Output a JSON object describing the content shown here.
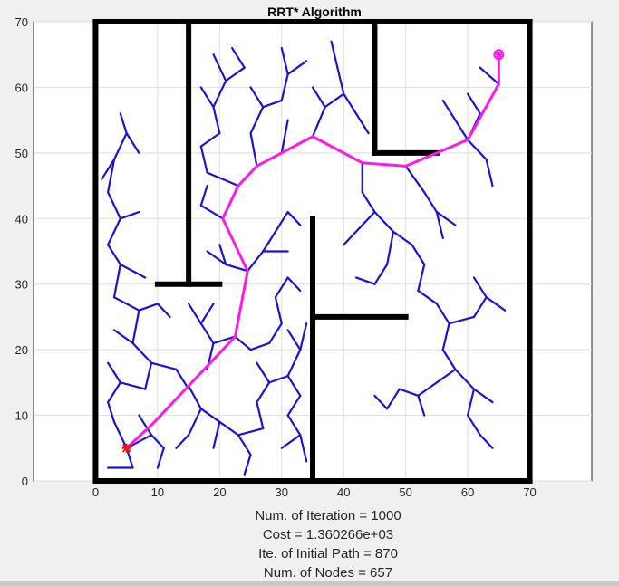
{
  "chart_data": {
    "type": "scatter",
    "title": "RRT* Algorithm",
    "xlim": [
      -10,
      80
    ],
    "ylim": [
      0,
      70
    ],
    "xticks": [
      0,
      10,
      20,
      30,
      40,
      50,
      60,
      70
    ],
    "yticks": [
      0,
      10,
      20,
      30,
      40,
      50,
      60,
      70
    ],
    "grid": true,
    "colors": {
      "tree": "#1a12d4",
      "path": "#ff19e6",
      "walls": "#000000",
      "start": "#ff1010",
      "goal": "#ff19e6"
    },
    "start": [
      5,
      5
    ],
    "goal": [
      65,
      65
    ],
    "walls": [
      [
        [
          0,
          0
        ],
        [
          0,
          70
        ]
      ],
      [
        [
          0,
          70
        ],
        [
          70,
          70
        ]
      ],
      [
        [
          70,
          70
        ],
        [
          70,
          0
        ]
      ],
      [
        [
          0,
          0
        ],
        [
          70,
          0
        ]
      ],
      [
        [
          15,
          70
        ],
        [
          15,
          30
        ]
      ],
      [
        [
          10,
          30
        ],
        [
          20,
          30
        ]
      ],
      [
        [
          35,
          40
        ],
        [
          35,
          0
        ]
      ],
      [
        [
          35,
          25
        ],
        [
          50,
          25
        ]
      ],
      [
        [
          45,
          70
        ],
        [
          45,
          50
        ]
      ],
      [
        [
          45,
          50
        ],
        [
          55,
          50
        ]
      ]
    ],
    "path": [
      [
        5,
        5
      ],
      [
        9,
        8.5
      ],
      [
        15,
        14.5
      ],
      [
        22.5,
        22
      ],
      [
        24.5,
        32
      ],
      [
        20.5,
        40
      ],
      [
        23,
        45
      ],
      [
        26,
        48
      ],
      [
        30,
        50
      ],
      [
        35,
        52.5
      ],
      [
        43,
        48.5
      ],
      [
        50,
        48
      ],
      [
        60,
        52
      ],
      [
        65,
        60.5
      ],
      [
        65,
        65
      ]
    ],
    "tree_edges": [
      [
        [
          5,
          5
        ],
        [
          3,
          9
        ]
      ],
      [
        [
          5,
          5
        ],
        [
          6,
          2
        ]
      ],
      [
        [
          2,
          2
        ],
        [
          6,
          2
        ]
      ],
      [
        [
          5,
          5
        ],
        [
          9,
          7
        ]
      ],
      [
        [
          3,
          9
        ],
        [
          2,
          12
        ]
      ],
      [
        [
          2,
          12
        ],
        [
          4,
          15
        ]
      ],
      [
        [
          4,
          15
        ],
        [
          2,
          18
        ]
      ],
      [
        [
          4,
          15
        ],
        [
          8,
          14
        ]
      ],
      [
        [
          8,
          14
        ],
        [
          9,
          18
        ]
      ],
      [
        [
          9,
          18
        ],
        [
          6,
          21
        ]
      ],
      [
        [
          9,
          18
        ],
        [
          13,
          17
        ]
      ],
      [
        [
          13,
          17
        ],
        [
          15,
          14
        ]
      ],
      [
        [
          6,
          21
        ],
        [
          3,
          23
        ]
      ],
      [
        [
          6,
          21
        ],
        [
          7,
          26
        ]
      ],
      [
        [
          7,
          26
        ],
        [
          3,
          28
        ]
      ],
      [
        [
          7,
          26
        ],
        [
          10,
          27
        ]
      ],
      [
        [
          10,
          27
        ],
        [
          12,
          25
        ]
      ],
      [
        [
          3,
          28
        ],
        [
          4,
          33
        ]
      ],
      [
        [
          4,
          33
        ],
        [
          2,
          36
        ]
      ],
      [
        [
          4,
          33
        ],
        [
          8,
          31
        ]
      ],
      [
        [
          2,
          36
        ],
        [
          4,
          40
        ]
      ],
      [
        [
          4,
          40
        ],
        [
          2,
          44
        ]
      ],
      [
        [
          4,
          40
        ],
        [
          7,
          41
        ]
      ],
      [
        [
          2,
          44
        ],
        [
          3,
          49
        ]
      ],
      [
        [
          3,
          49
        ],
        [
          5,
          53
        ]
      ],
      [
        [
          5,
          53
        ],
        [
          4,
          56
        ]
      ],
      [
        [
          5,
          53
        ],
        [
          7,
          50
        ]
      ],
      [
        [
          3,
          49
        ],
        [
          1,
          46
        ]
      ],
      [
        [
          9,
          7
        ],
        [
          7,
          10
        ]
      ],
      [
        [
          9,
          7
        ],
        [
          11,
          5
        ]
      ],
      [
        [
          11,
          5
        ],
        [
          10,
          2
        ]
      ],
      [
        [
          15,
          14.5
        ],
        [
          17,
          11
        ]
      ],
      [
        [
          17,
          11
        ],
        [
          15,
          7
        ]
      ],
      [
        [
          15,
          7
        ],
        [
          13,
          5
        ]
      ],
      [
        [
          17,
          11
        ],
        [
          20,
          9
        ]
      ],
      [
        [
          20,
          9
        ],
        [
          19,
          5
        ]
      ],
      [
        [
          20,
          9
        ],
        [
          23,
          7
        ]
      ],
      [
        [
          23,
          7
        ],
        [
          25,
          4
        ]
      ],
      [
        [
          25,
          4
        ],
        [
          24,
          1
        ]
      ],
      [
        [
          23,
          7
        ],
        [
          27,
          8
        ]
      ],
      [
        [
          27,
          8
        ],
        [
          26,
          12
        ]
      ],
      [
        [
          26,
          12
        ],
        [
          28,
          15
        ]
      ],
      [
        [
          28,
          15
        ],
        [
          26,
          18
        ]
      ],
      [
        [
          28,
          15
        ],
        [
          31,
          16
        ]
      ],
      [
        [
          31,
          16
        ],
        [
          33,
          13
        ]
      ],
      [
        [
          33,
          13
        ],
        [
          31,
          10
        ]
      ],
      [
        [
          31,
          10
        ],
        [
          33,
          7
        ]
      ],
      [
        [
          33,
          7
        ],
        [
          30,
          5
        ]
      ],
      [
        [
          33,
          7
        ],
        [
          34,
          3
        ]
      ],
      [
        [
          31,
          16
        ],
        [
          33,
          20
        ]
      ],
      [
        [
          33,
          20
        ],
        [
          31,
          23
        ]
      ],
      [
        [
          33,
          20
        ],
        [
          34,
          24
        ]
      ],
      [
        [
          22.5,
          22
        ],
        [
          19,
          21
        ]
      ],
      [
        [
          19,
          21
        ],
        [
          17,
          24
        ]
      ],
      [
        [
          17,
          24
        ],
        [
          15,
          27
        ]
      ],
      [
        [
          17,
          24
        ],
        [
          19,
          27
        ]
      ],
      [
        [
          19,
          21
        ],
        [
          18,
          17
        ]
      ],
      [
        [
          22.5,
          22
        ],
        [
          25,
          20
        ]
      ],
      [
        [
          25,
          20
        ],
        [
          28,
          21
        ]
      ],
      [
        [
          28,
          21
        ],
        [
          30,
          24
        ]
      ],
      [
        [
          30,
          24
        ],
        [
          29,
          28
        ]
      ],
      [
        [
          29,
          28
        ],
        [
          31,
          31
        ]
      ],
      [
        [
          31,
          31
        ],
        [
          33,
          29
        ]
      ],
      [
        [
          24.5,
          32
        ],
        [
          21,
          33
        ]
      ],
      [
        [
          21,
          33
        ],
        [
          18,
          35
        ]
      ],
      [
        [
          21,
          33
        ],
        [
          20,
          36
        ]
      ],
      [
        [
          24.5,
          32
        ],
        [
          27,
          35
        ]
      ],
      [
        [
          27,
          35
        ],
        [
          29,
          38
        ]
      ],
      [
        [
          29,
          38
        ],
        [
          31,
          41
        ]
      ],
      [
        [
          31,
          41
        ],
        [
          33,
          39
        ]
      ],
      [
        [
          27,
          35
        ],
        [
          31,
          35
        ]
      ],
      [
        [
          20.5,
          40
        ],
        [
          17,
          42
        ]
      ],
      [
        [
          17,
          42
        ],
        [
          18,
          45
        ]
      ],
      [
        [
          23,
          45
        ],
        [
          18,
          47
        ]
      ],
      [
        [
          18,
          47
        ],
        [
          17,
          51
        ]
      ],
      [
        [
          17,
          51
        ],
        [
          20,
          53
        ]
      ],
      [
        [
          20,
          53
        ],
        [
          19,
          57
        ]
      ],
      [
        [
          19,
          57
        ],
        [
          17,
          60
        ]
      ],
      [
        [
          19,
          57
        ],
        [
          21,
          61
        ]
      ],
      [
        [
          21,
          61
        ],
        [
          19,
          65
        ]
      ],
      [
        [
          21,
          61
        ],
        [
          24,
          63
        ]
      ],
      [
        [
          24,
          63
        ],
        [
          22,
          66
        ]
      ],
      [
        [
          26,
          48
        ],
        [
          25,
          53
        ]
      ],
      [
        [
          25,
          53
        ],
        [
          27,
          57
        ]
      ],
      [
        [
          27,
          57
        ],
        [
          25,
          60
        ]
      ],
      [
        [
          27,
          57
        ],
        [
          30,
          58
        ]
      ],
      [
        [
          30,
          58
        ],
        [
          31,
          62
        ]
      ],
      [
        [
          31,
          62
        ],
        [
          30,
          66
        ]
      ],
      [
        [
          31,
          62
        ],
        [
          34,
          64
        ]
      ],
      [
        [
          30,
          50
        ],
        [
          31,
          55
        ]
      ],
      [
        [
          35,
          52.5
        ],
        [
          37,
          57
        ]
      ],
      [
        [
          37,
          57
        ],
        [
          35,
          60
        ]
      ],
      [
        [
          37,
          57
        ],
        [
          40,
          59
        ]
      ],
      [
        [
          40,
          59
        ],
        [
          39,
          63
        ]
      ],
      [
        [
          39,
          63
        ],
        [
          38,
          67
        ]
      ],
      [
        [
          40,
          59
        ],
        [
          42,
          56
        ]
      ],
      [
        [
          42,
          56
        ],
        [
          44,
          53
        ]
      ],
      [
        [
          43,
          48.5
        ],
        [
          43,
          44
        ]
      ],
      [
        [
          43,
          44
        ],
        [
          45,
          41
        ]
      ],
      [
        [
          45,
          41
        ],
        [
          42,
          38
        ]
      ],
      [
        [
          42,
          38
        ],
        [
          40,
          36
        ]
      ],
      [
        [
          45,
          41
        ],
        [
          48,
          38
        ]
      ],
      [
        [
          48,
          38
        ],
        [
          51,
          36
        ]
      ],
      [
        [
          51,
          36
        ],
        [
          53,
          33
        ]
      ],
      [
        [
          53,
          33
        ],
        [
          52,
          29
        ]
      ],
      [
        [
          52,
          29
        ],
        [
          55,
          27
        ]
      ],
      [
        [
          55,
          27
        ],
        [
          57,
          24
        ]
      ],
      [
        [
          57,
          24
        ],
        [
          56,
          20
        ]
      ],
      [
        [
          56,
          20
        ],
        [
          58,
          17
        ]
      ],
      [
        [
          58,
          17
        ],
        [
          55,
          15
        ]
      ],
      [
        [
          55,
          15
        ],
        [
          52,
          13
        ]
      ],
      [
        [
          52,
          13
        ],
        [
          49,
          14
        ]
      ],
      [
        [
          49,
          14
        ],
        [
          47,
          11
        ]
      ],
      [
        [
          47,
          11
        ],
        [
          45,
          13
        ]
      ],
      [
        [
          52,
          13
        ],
        [
          53,
          10
        ]
      ],
      [
        [
          58,
          17
        ],
        [
          61,
          14
        ]
      ],
      [
        [
          61,
          14
        ],
        [
          60,
          10
        ]
      ],
      [
        [
          61,
          14
        ],
        [
          64,
          12
        ]
      ],
      [
        [
          60,
          10
        ],
        [
          62,
          7
        ]
      ],
      [
        [
          62,
          7
        ],
        [
          64,
          5
        ]
      ],
      [
        [
          57,
          24
        ],
        [
          61,
          25
        ]
      ],
      [
        [
          61,
          25
        ],
        [
          63,
          28
        ]
      ],
      [
        [
          63,
          28
        ],
        [
          61,
          31
        ]
      ],
      [
        [
          63,
          28
        ],
        [
          66,
          26
        ]
      ],
      [
        [
          48,
          38
        ],
        [
          47,
          33
        ]
      ],
      [
        [
          47,
          33
        ],
        [
          45,
          30
        ]
      ],
      [
        [
          45,
          30
        ],
        [
          42,
          31
        ]
      ],
      [
        [
          50,
          48
        ],
        [
          53,
          44
        ]
      ],
      [
        [
          53,
          44
        ],
        [
          55,
          41
        ]
      ],
      [
        [
          55,
          41
        ],
        [
          58,
          39
        ]
      ],
      [
        [
          55,
          41
        ],
        [
          56,
          37
        ]
      ],
      [
        [
          60,
          52
        ],
        [
          63,
          49
        ]
      ],
      [
        [
          63,
          49
        ],
        [
          64,
          45
        ]
      ],
      [
        [
          60,
          52
        ],
        [
          58,
          55
        ]
      ],
      [
        [
          58,
          55
        ],
        [
          56,
          58
        ]
      ],
      [
        [
          60,
          52
        ],
        [
          62,
          56
        ]
      ],
      [
        [
          62,
          56
        ],
        [
          60,
          59
        ]
      ],
      [
        [
          65,
          60.5
        ],
        [
          62,
          63
        ]
      ]
    ]
  },
  "info": {
    "iterations": "Num. of Iteration =  1000",
    "cost": "Cost =  1.360266e+03",
    "initial_path": "Ite. of Initial Path =  870",
    "nodes": "Num. of Nodes =  657"
  }
}
